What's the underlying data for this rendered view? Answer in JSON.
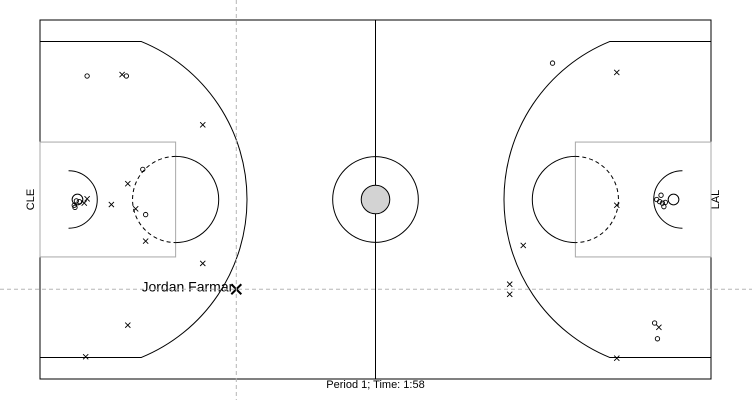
{
  "chart_data": {
    "type": "scatter",
    "title": "",
    "caption": "Period 1; Time: 1:58",
    "xlim": [
      0,
      94
    ],
    "ylim": [
      0,
      50
    ],
    "teams": {
      "left": "CLE",
      "right": "LAL"
    },
    "highlight": {
      "label": "Jordan Farmar",
      "x": 27.5,
      "y": 12.5
    },
    "series": [
      {
        "symbol": "o",
        "points": [
          [
            6.6,
            42.2
          ],
          [
            12.1,
            42.2
          ],
          [
            14.4,
            29.2
          ],
          [
            14.8,
            22.9
          ],
          [
            5.1,
            24.8
          ],
          [
            4.8,
            24.2
          ],
          [
            5.5,
            24.7
          ],
          [
            4.9,
            23.9
          ],
          [
            71.8,
            44.0
          ],
          [
            86.4,
            25.0
          ],
          [
            87.2,
            24.5
          ],
          [
            87.0,
            25.6
          ],
          [
            87.4,
            24.0
          ],
          [
            87.6,
            24.6
          ],
          [
            86.8,
            24.7
          ],
          [
            86.1,
            7.8
          ],
          [
            86.5,
            5.6
          ]
        ]
      },
      {
        "symbol": "x",
        "points": [
          [
            11.5,
            42.4
          ],
          [
            22.8,
            35.4
          ],
          [
            12.3,
            27.2
          ],
          [
            13.4,
            23.7
          ],
          [
            10.0,
            24.3
          ],
          [
            6.6,
            25.1
          ],
          [
            6.2,
            24.5
          ],
          [
            14.8,
            19.2
          ],
          [
            22.8,
            16.1
          ],
          [
            12.3,
            7.5
          ],
          [
            6.4,
            3.1
          ],
          [
            80.8,
            42.7
          ],
          [
            67.7,
            18.6
          ],
          [
            65.8,
            13.2
          ],
          [
            65.8,
            11.8
          ],
          [
            80.8,
            24.2
          ],
          [
            86.7,
            7.2
          ],
          [
            80.8,
            2.9
          ]
        ]
      }
    ]
  }
}
